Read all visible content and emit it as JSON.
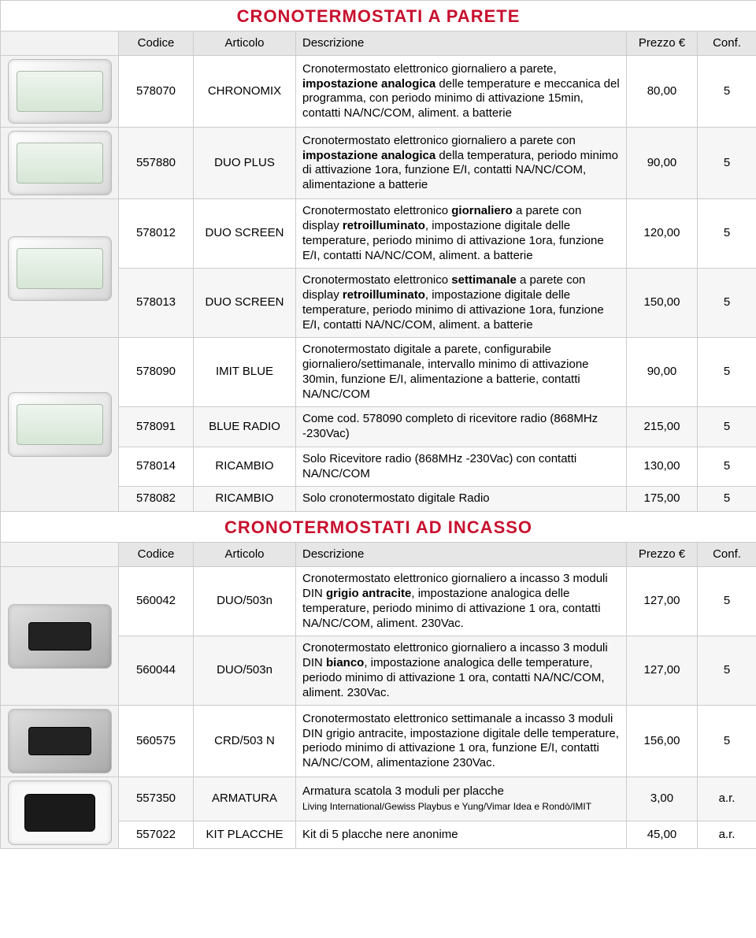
{
  "sections": [
    {
      "title": "CRONOTERMOSTATI A PARETE",
      "headers": {
        "code": "Codice",
        "art": "Articolo",
        "desc": "Descrizione",
        "price": "Prezzo €",
        "conf": "Conf."
      },
      "rows": [
        {
          "code": "578070",
          "art": "CHRONOMIX",
          "desc_parts": [
            [
              "Cronotermostato elettronico giornaliero a parete, ",
              false
            ],
            [
              "impostazione analogica",
              true
            ],
            [
              " delle temperature e meccanica del programma, con periodo minimo di attivazione 15min, contatti NA/NC/COM, aliment. a batterie",
              false
            ]
          ],
          "price": "80,00",
          "conf": "5"
        },
        {
          "code": "557880",
          "art": "DUO PLUS",
          "desc_parts": [
            [
              "Cronotermostato elettronico giornaliero a parete con ",
              false
            ],
            [
              "impostazione analogica",
              true
            ],
            [
              " della temperatura, periodo minimo di attivazione 1ora, funzione E/I, contatti NA/NC/COM, alimentazione a batterie",
              false
            ]
          ],
          "price": "90,00",
          "conf": "5"
        },
        {
          "code": "578012",
          "art": "DUO SCREEN",
          "desc_parts": [
            [
              "Cronotermostato elettronico ",
              false
            ],
            [
              "giornaliero",
              true
            ],
            [
              " a parete con display ",
              false
            ],
            [
              "retroilluminato",
              true
            ],
            [
              ", impostazione digitale delle temperature, periodo minimo di attivazione 1ora, funzione E/I, contatti NA/NC/COM, aliment. a batterie",
              false
            ]
          ],
          "price": "120,00",
          "conf": "5"
        },
        {
          "code": "578013",
          "art": "DUO SCREEN",
          "desc_parts": [
            [
              "Cronotermostato elettronico ",
              false
            ],
            [
              "settimanale",
              true
            ],
            [
              " a parete con display ",
              false
            ],
            [
              "retroilluminato",
              true
            ],
            [
              ", impostazione digitale delle temperature, periodo minimo di attivazione 1ora, funzione E/I, contatti NA/NC/COM, aliment. a batterie",
              false
            ]
          ],
          "price": "150,00",
          "conf": "5"
        },
        {
          "code": "578090",
          "art": "IMIT BLUE",
          "desc_parts": [
            [
              "Cronotermostato digitale a parete, configurabile giornaliero/settimanale, intervallo minimo di attivazione 30min, funzione E/I, alimentazione a batterie, contatti NA/NC/COM",
              false
            ]
          ],
          "price": "90,00",
          "conf": "5"
        },
        {
          "code": "578091",
          "art": "BLUE RADIO",
          "desc_parts": [
            [
              "Come cod. 578090 completo di ricevitore radio (868MHz -230Vac)",
              false
            ]
          ],
          "price": "215,00",
          "conf": "5"
        },
        {
          "code": "578014",
          "art": "RICAMBIO",
          "desc_parts": [
            [
              "Solo Ricevitore radio (868MHz -230Vac) con contatti NA/NC/COM",
              false
            ]
          ],
          "price": "130,00",
          "conf": "5"
        },
        {
          "code": "578082",
          "art": "RICAMBIO",
          "desc_parts": [
            [
              "Solo cronotermostato digitale Radio",
              false
            ]
          ],
          "price": "175,00",
          "conf": "5"
        }
      ],
      "images": [
        {
          "rowspan": 1,
          "class": ""
        },
        {
          "rowspan": 1,
          "class": ""
        },
        {
          "rowspan": 2,
          "class": ""
        },
        {
          "rowspan": 4,
          "class": ""
        }
      ]
    },
    {
      "title": "CRONOTERMOSTATI AD INCASSO",
      "headers": {
        "code": "Codice",
        "art": "Articolo",
        "desc": "Descrizione",
        "price": "Prezzo €",
        "conf": "Conf."
      },
      "rows": [
        {
          "code": "560042",
          "art": "DUO/503n",
          "desc_parts": [
            [
              "Cronotermostato elettronico giornaliero a incasso 3 moduli DIN ",
              false
            ],
            [
              "grigio antracite",
              true
            ],
            [
              ", impostazione analogica delle temperature, periodo minimo di attivazione 1 ora, contatti NA/NC/COM, aliment. 230Vac.",
              false
            ]
          ],
          "price": "127,00",
          "conf": "5"
        },
        {
          "code": "560044",
          "art": "DUO/503n",
          "desc_parts": [
            [
              "Cronotermostato elettronico giornaliero a incasso 3 moduli DIN ",
              false
            ],
            [
              "bianco",
              true
            ],
            [
              ", impostazione analogica delle temperature, periodo minimo di attivazione 1 ora, contatti NA/NC/COM, aliment. 230Vac.",
              false
            ]
          ],
          "price": "127,00",
          "conf": "5"
        },
        {
          "code": "560575",
          "art": "CRD/503 N",
          "desc_parts": [
            [
              "Cronotermostato elettronico settimanale a incasso 3 moduli DIN grigio antracite, impostazione digitale delle temperature, periodo minimo di attivazione 1 ora, funzione E/I, contatti NA/NC/COM, alimentazione 230Vac.",
              false
            ]
          ],
          "price": "156,00",
          "conf": "5"
        },
        {
          "code": "557350",
          "art": "ARMATURA",
          "desc_parts": [
            [
              "Armatura scatola 3 moduli per placche ",
              false
            ]
          ],
          "desc_sub": "Living International/Gewiss Playbus e Yung/Vimar Idea e Rondò/IMIT",
          "price": "3,00",
          "conf": "a.r."
        },
        {
          "code": "557022",
          "art": "KIT PLACCHE",
          "desc_parts": [
            [
              "Kit di 5 placche nere anonime",
              false
            ]
          ],
          "price": "45,00",
          "conf": "a.r."
        }
      ],
      "images": [
        {
          "rowspan": 2,
          "class": "dark"
        },
        {
          "rowspan": 1,
          "class": "dark"
        },
        {
          "rowspan": 2,
          "class": "plate"
        }
      ]
    }
  ],
  "colors": {
    "title": "#c8102e",
    "border": "#cccccc",
    "header_bg": "#e6e6e6",
    "img_bg": "#f2f2f2"
  }
}
